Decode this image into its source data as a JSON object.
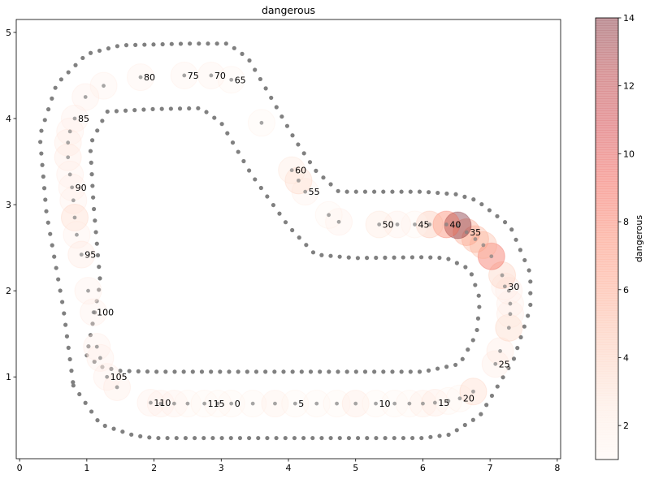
{
  "chart_data": {
    "type": "scatter",
    "title": "dangerous",
    "xlim": [
      -0.05,
      8.05
    ],
    "ylim": [
      0.05,
      5.15
    ],
    "xticks": [
      0,
      1,
      2,
      3,
      4,
      5,
      6,
      7,
      8
    ],
    "yticks": [
      1,
      2,
      3,
      4,
      5
    ],
    "grid": false,
    "colorbar": {
      "label": "dangerous",
      "min": 1,
      "max": 14,
      "ticks": [
        2,
        4,
        6,
        8,
        10,
        12,
        14
      ],
      "colormap": [
        "#fff5f0",
        "#fee0d2",
        "#fcbba1",
        "#fc9272",
        "#fb6a4a",
        "#ef3b2c",
        "#cb181d",
        "#a50f15",
        "#67000d"
      ],
      "alpha": 0.35
    },
    "track_color": "#808080",
    "inner_border": [
      [
        1.0,
        1.25
      ],
      [
        1.2,
        1.12
      ],
      [
        1.5,
        1.07
      ],
      [
        2.0,
        1.06
      ],
      [
        3.0,
        1.06
      ],
      [
        4.0,
        1.06
      ],
      [
        5.0,
        1.06
      ],
      [
        6.0,
        1.06
      ],
      [
        6.55,
        1.15
      ],
      [
        6.8,
        1.5
      ],
      [
        6.85,
        1.9
      ],
      [
        6.7,
        2.25
      ],
      [
        6.35,
        2.38
      ],
      [
        6.0,
        2.39
      ],
      [
        5.0,
        2.38
      ],
      [
        4.4,
        2.42
      ],
      [
        4.0,
        2.75
      ],
      [
        3.45,
        3.35
      ],
      [
        3.0,
        3.95
      ],
      [
        2.7,
        4.12
      ],
      [
        2.0,
        4.11
      ],
      [
        1.3,
        4.08
      ],
      [
        1.05,
        3.7
      ],
      [
        1.1,
        3.0
      ],
      [
        1.2,
        2.1
      ],
      [
        1.0,
        1.25
      ]
    ],
    "outer_border": [
      [
        0.8,
        0.9
      ],
      [
        1.2,
        0.45
      ],
      [
        1.7,
        0.32
      ],
      [
        2.0,
        0.29
      ],
      [
        3.0,
        0.29
      ],
      [
        4.0,
        0.29
      ],
      [
        5.0,
        0.29
      ],
      [
        6.0,
        0.29
      ],
      [
        6.4,
        0.33
      ],
      [
        6.85,
        0.55
      ],
      [
        7.35,
        1.2
      ],
      [
        7.6,
        1.8
      ],
      [
        7.6,
        2.2
      ],
      [
        7.3,
        2.75
      ],
      [
        6.8,
        3.05
      ],
      [
        6.5,
        3.12
      ],
      [
        6.0,
        3.15
      ],
      [
        4.75,
        3.15
      ],
      [
        4.4,
        3.4
      ],
      [
        4.1,
        3.75
      ],
      [
        3.7,
        4.3
      ],
      [
        3.4,
        4.7
      ],
      [
        3.1,
        4.87
      ],
      [
        2.5,
        4.87
      ],
      [
        1.5,
        4.85
      ],
      [
        1.0,
        4.75
      ],
      [
        0.55,
        4.4
      ],
      [
        0.3,
        3.8
      ],
      [
        0.4,
        2.9
      ],
      [
        0.65,
        1.8
      ],
      [
        0.8,
        0.9
      ]
    ],
    "waypoints": [
      {
        "label": "0",
        "x": 3.15,
        "y": 0.69,
        "value": 1.0
      },
      {
        "x": 3.47,
        "y": 0.69,
        "value": 1.0
      },
      {
        "x": 3.8,
        "y": 0.69,
        "value": 1.6
      },
      {
        "label": "5",
        "x": 4.1,
        "y": 0.69,
        "value": 1.0
      },
      {
        "x": 4.42,
        "y": 0.69,
        "value": 1.0
      },
      {
        "x": 4.72,
        "y": 0.69,
        "value": 1.0
      },
      {
        "x": 5.0,
        "y": 0.69,
        "value": 1.9
      },
      {
        "label": "10",
        "x": 5.3,
        "y": 0.69,
        "value": 1.0
      },
      {
        "x": 5.58,
        "y": 0.69,
        "value": 1.0
      },
      {
        "x": 5.8,
        "y": 0.69,
        "value": 1.0
      },
      {
        "x": 6.0,
        "y": 0.69,
        "value": 1.6
      },
      {
        "label": "15",
        "x": 6.18,
        "y": 0.7,
        "value": 1.9
      },
      {
        "x": 6.38,
        "y": 0.72,
        "value": 1.0
      },
      {
        "label": "20",
        "x": 6.55,
        "y": 0.75,
        "value": 1.0
      },
      {
        "x": 6.75,
        "y": 0.83,
        "value": 3.0
      },
      {
        "label": "25",
        "x": 7.08,
        "y": 1.15,
        "value": 1.7
      },
      {
        "x": 7.15,
        "y": 1.3,
        "value": 1.9
      },
      {
        "x": 7.28,
        "y": 1.57,
        "value": 3.2
      },
      {
        "x": 7.3,
        "y": 1.73,
        "value": 1.7
      },
      {
        "x": 7.3,
        "y": 1.85,
        "value": 1.5
      },
      {
        "x": 7.28,
        "y": 2.0,
        "value": 1.5
      },
      {
        "label": "30",
        "x": 7.22,
        "y": 2.05,
        "value": 1.5
      },
      {
        "x": 7.18,
        "y": 2.18,
        "value": 3.5
      },
      {
        "x": 7.02,
        "y": 2.4,
        "value": 8.5
      },
      {
        "x": 6.9,
        "y": 2.53,
        "value": 4.5
      },
      {
        "x": 6.78,
        "y": 2.6,
        "value": 5.0
      },
      {
        "label": "35",
        "x": 6.65,
        "y": 2.68,
        "value": 5.5
      },
      {
        "x": 6.52,
        "y": 2.76,
        "value": 14.0
      },
      {
        "label": "40",
        "x": 6.35,
        "y": 2.77,
        "value": 7.5
      },
      {
        "x": 6.1,
        "y": 2.77,
        "value": 4.0
      },
      {
        "label": "45",
        "x": 5.88,
        "y": 2.77,
        "value": 1.0
      },
      {
        "x": 5.62,
        "y": 2.77,
        "value": 1.5
      },
      {
        "label": "50",
        "x": 5.35,
        "y": 2.77,
        "value": 2.0
      },
      {
        "x": 4.75,
        "y": 2.8,
        "value": 1.5
      },
      {
        "x": 4.6,
        "y": 2.88,
        "value": 1.0
      },
      {
        "label": "55",
        "x": 4.25,
        "y": 3.15,
        "value": 1.2
      },
      {
        "x": 4.15,
        "y": 3.28,
        "value": 3.0
      },
      {
        "label": "60",
        "x": 4.05,
        "y": 3.4,
        "value": 2.0
      },
      {
        "x": 3.6,
        "y": 3.95,
        "value": 1.0
      },
      {
        "label": "65",
        "x": 3.15,
        "y": 4.45,
        "value": 1.0
      },
      {
        "label": "70",
        "x": 2.85,
        "y": 4.5,
        "value": 1.2
      },
      {
        "label": "75",
        "x": 2.45,
        "y": 4.5,
        "value": 1.2
      },
      {
        "label": "80",
        "x": 1.8,
        "y": 4.48,
        "value": 1.2
      },
      {
        "x": 1.25,
        "y": 4.38,
        "value": 1.3
      },
      {
        "x": 0.98,
        "y": 4.25,
        "value": 1.5
      },
      {
        "label": "85",
        "x": 0.82,
        "y": 4.0,
        "value": 1.5
      },
      {
        "x": 0.75,
        "y": 3.85,
        "value": 1.5
      },
      {
        "x": 0.72,
        "y": 3.72,
        "value": 1.7
      },
      {
        "x": 0.72,
        "y": 3.55,
        "value": 1.9
      },
      {
        "x": 0.75,
        "y": 3.35,
        "value": 1.5
      },
      {
        "label": "90",
        "x": 0.78,
        "y": 3.2,
        "value": 1.5
      },
      {
        "x": 0.8,
        "y": 3.05,
        "value": 1.5
      },
      {
        "x": 0.82,
        "y": 2.85,
        "value": 3.0
      },
      {
        "x": 0.85,
        "y": 2.65,
        "value": 1.5
      },
      {
        "label": "95",
        "x": 0.92,
        "y": 2.42,
        "value": 1.9
      },
      {
        "x": 1.02,
        "y": 2.0,
        "value": 1.5
      },
      {
        "label": "100",
        "x": 1.1,
        "y": 1.75,
        "value": 1.5
      },
      {
        "x": 1.15,
        "y": 1.35,
        "value": 1.5
      },
      {
        "x": 1.2,
        "y": 1.22,
        "value": 1.5
      },
      {
        "label": "105",
        "x": 1.3,
        "y": 1.0,
        "value": 1.5
      },
      {
        "x": 1.45,
        "y": 0.88,
        "value": 1.7
      },
      {
        "label": "110",
        "x": 1.95,
        "y": 0.7,
        "value": 1.5
      },
      {
        "x": 2.1,
        "y": 0.69,
        "value": 1.5
      },
      {
        "x": 2.3,
        "y": 0.69,
        "value": 1.5
      },
      {
        "x": 2.5,
        "y": 0.69,
        "value": 1.0
      },
      {
        "label": "115",
        "x": 2.75,
        "y": 0.69,
        "value": 1.0
      },
      {
        "x": 2.95,
        "y": 0.69,
        "value": 1.0
      }
    ]
  }
}
